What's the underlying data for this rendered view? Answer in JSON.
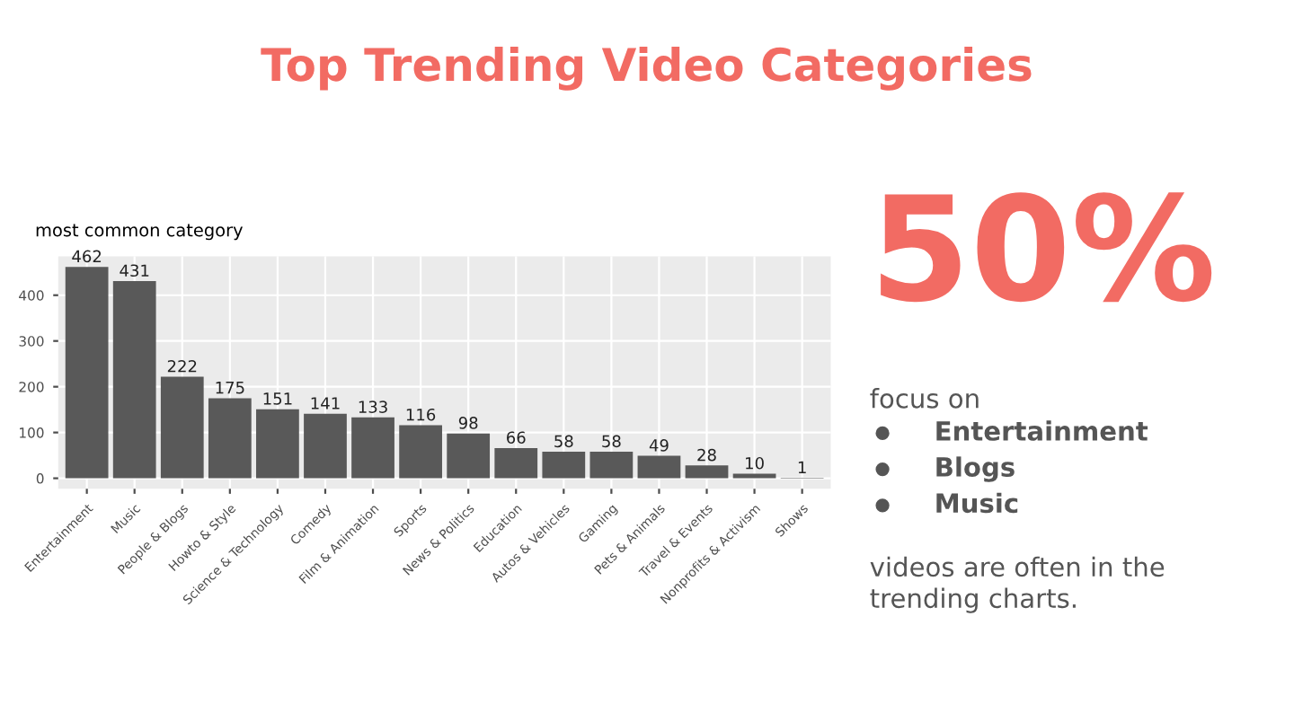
{
  "chart_data": {
    "type": "bar",
    "title": "Top Trending Video Categories",
    "subtitle": "most common category",
    "categories": [
      "Entertainment",
      "Music",
      "People & Blogs",
      "Howto & Style",
      "Science & Technology",
      "Comedy",
      "Film & Animation",
      "Sports",
      "News & Politics",
      "Education",
      "Autos & Vehicles",
      "Gaming",
      "Pets & Animals",
      "Travel & Events",
      "Nonprofits & Activism",
      "Shows"
    ],
    "values": [
      462,
      431,
      222,
      175,
      151,
      141,
      133,
      116,
      98,
      66,
      58,
      58,
      49,
      28,
      10,
      1
    ],
    "color": "#595959",
    "ylim": [
      -23,
      485
    ],
    "yticks": [
      0,
      100,
      200,
      300,
      400
    ],
    "grid": true,
    "data_labels": true,
    "annotations": [
      "50%",
      "focus on",
      "Entertainment",
      "Blogs",
      "Music",
      "videos are often in the\ntrending charts."
    ]
  }
}
